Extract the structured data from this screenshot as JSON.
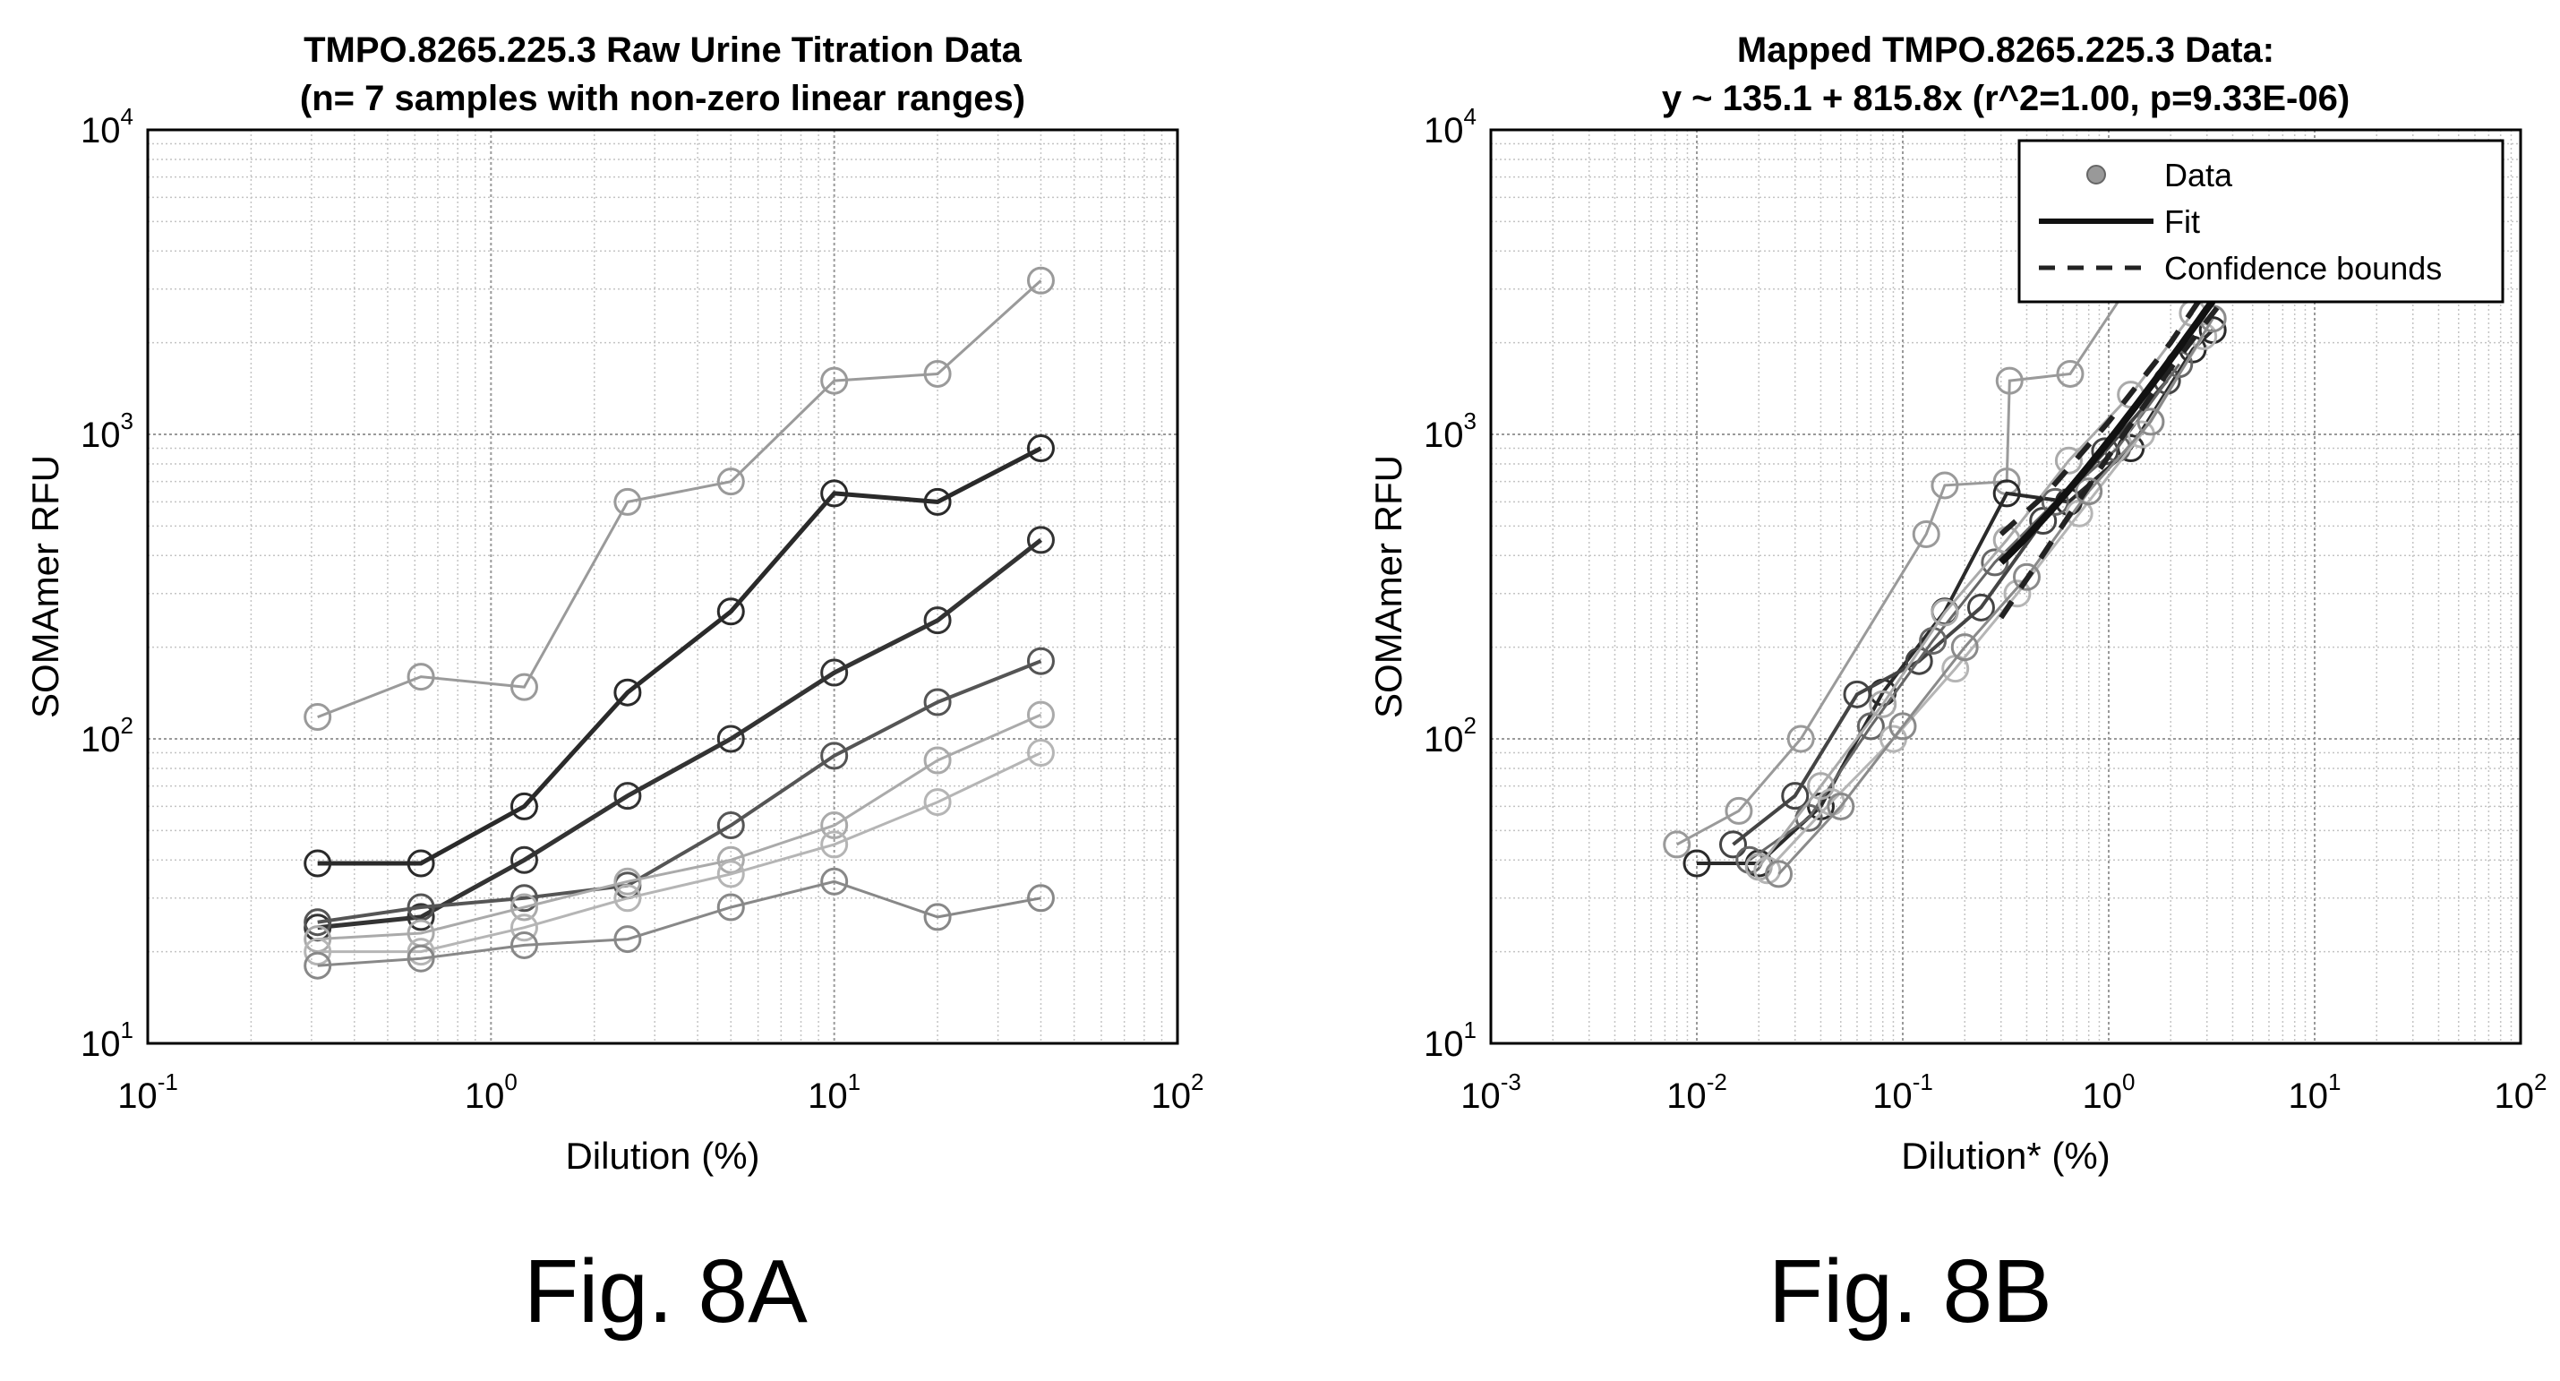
{
  "figures": [
    {
      "caption": "Fig. 8A"
    },
    {
      "caption": "Fig. 8B"
    }
  ],
  "chart_data": [
    {
      "type": "line",
      "title": "TMPO.8265.225.3 Raw Urine Titration Data",
      "subtitle": "(n= 7 samples with non-zero linear ranges)",
      "xlabel": "Dilution (%)",
      "ylabel": "SOMAmer RFU",
      "xscale": "log",
      "yscale": "log",
      "xlim": [
        0.1,
        100
      ],
      "ylim": [
        10,
        10000
      ],
      "xticks": [
        0.1,
        1,
        10,
        100
      ],
      "yticks": [
        10,
        100,
        1000,
        10000
      ],
      "grid": true,
      "minor_grid": true,
      "x": [
        0.3125,
        0.625,
        1.25,
        2.5,
        5,
        10,
        20,
        40
      ],
      "series": [
        {
          "values": [
            118,
            160,
            148,
            600,
            700,
            1500,
            1580,
            3200
          ],
          "color": "#9a9a9a",
          "width": 3
        },
        {
          "values": [
            39,
            39,
            60,
            142,
            262,
            640,
            600,
            900
          ],
          "color": "#2a2a2a",
          "width": 5
        },
        {
          "values": [
            24,
            26,
            40,
            65,
            100,
            165,
            245,
            450
          ],
          "color": "#333333",
          "width": 5
        },
        {
          "values": [
            25,
            28,
            30,
            33,
            52,
            88,
            132,
            180
          ],
          "color": "#555555",
          "width": 4
        },
        {
          "values": [
            22,
            23,
            28,
            34,
            40,
            52,
            85,
            120
          ],
          "color": "#aaaaaa",
          "width": 3
        },
        {
          "values": [
            20,
            20,
            24,
            30,
            36,
            45,
            62,
            90
          ],
          "color": "#b5b5b5",
          "width": 3
        },
        {
          "values": [
            18,
            19,
            21,
            22,
            28,
            34,
            26,
            30
          ],
          "color": "#888888",
          "width": 3
        }
      ]
    },
    {
      "type": "scatter",
      "title": "Mapped TMPO.8265.225.3 Data:",
      "subtitle": "y ~ 135.1 + 815.8x (r^2=1.00, p=9.33E-06)",
      "xlabel": "Dilution* (%)",
      "ylabel": "SOMAmer RFU",
      "xscale": "log",
      "yscale": "log",
      "xlim": [
        0.001,
        100
      ],
      "ylim": [
        10,
        10000
      ],
      "xticks": [
        0.001,
        0.01,
        0.1,
        1,
        10,
        100
      ],
      "yticks": [
        10,
        100,
        1000,
        10000
      ],
      "grid": true,
      "minor_grid": true,
      "legend": {
        "placement": "top-right",
        "entries": [
          {
            "label": "Data",
            "style": "marker"
          },
          {
            "label": "Fit",
            "style": "solid"
          },
          {
            "label": "Confidence bounds",
            "style": "dashed"
          }
        ]
      },
      "series": [
        {
          "x": [
            0.008,
            0.016,
            0.032,
            0.13,
            0.16,
            0.32,
            0.33,
            0.65,
            1.3,
            2.6
          ],
          "y": [
            45,
            58,
            100,
            470,
            680,
            700,
            1500,
            1580,
            3200,
            4800
          ],
          "color": "#9a9a9a",
          "width": 3
        },
        {
          "x": [
            0.01,
            0.02,
            0.04,
            0.08,
            0.16,
            0.32,
            0.64,
            1.28,
            2.56,
            3.2
          ],
          "y": [
            39,
            39,
            60,
            142,
            262,
            640,
            600,
            900,
            1900,
            2200
          ],
          "color": "#2a2a2a",
          "width": 4
        },
        {
          "x": [
            0.015,
            0.03,
            0.06,
            0.12,
            0.24,
            0.48,
            0.96,
            1.92
          ],
          "y": [
            45,
            65,
            140,
            180,
            270,
            520,
            880,
            1500
          ],
          "color": "#444444",
          "width": 4
        },
        {
          "x": [
            0.018,
            0.035,
            0.07,
            0.14,
            0.28,
            0.55,
            1.1,
            2.2
          ],
          "y": [
            40,
            55,
            110,
            210,
            380,
            600,
            900,
            1700
          ],
          "color": "#666666",
          "width": 3
        },
        {
          "x": [
            0.02,
            0.04,
            0.08,
            0.16,
            0.32,
            0.64,
            1.28,
            2.56
          ],
          "y": [
            38,
            70,
            130,
            260,
            450,
            820,
            1350,
            2500
          ],
          "color": "#aaaaaa",
          "width": 3
        },
        {
          "x": [
            0.022,
            0.045,
            0.09,
            0.18,
            0.36,
            0.72,
            1.44,
            2.88
          ],
          "y": [
            37,
            62,
            100,
            170,
            300,
            550,
            1000,
            2100
          ],
          "color": "#b5b5b5",
          "width": 3
        },
        {
          "x": [
            0.025,
            0.05,
            0.1,
            0.2,
            0.4,
            0.8,
            1.6,
            3.2
          ],
          "y": [
            36,
            60,
            110,
            200,
            340,
            650,
            1100,
            2400
          ],
          "color": "#8a8a8a",
          "width": 3
        }
      ],
      "fit": {
        "intercept": 135.1,
        "slope": 815.8,
        "x_range": [
          0.3,
          3.5
        ],
        "color": "#111111",
        "width": 8
      },
      "confidence_bounds": {
        "upper": {
          "x": [
            0.3,
            0.5,
            1,
            2,
            3.5
          ],
          "y": [
            470,
            640,
            1100,
            2000,
            3500
          ]
        },
        "lower": {
          "x": [
            0.3,
            0.5,
            1,
            2,
            3.5
          ],
          "y": [
            250,
            420,
            850,
            1650,
            2700
          ]
        },
        "color": "#222222"
      }
    }
  ]
}
